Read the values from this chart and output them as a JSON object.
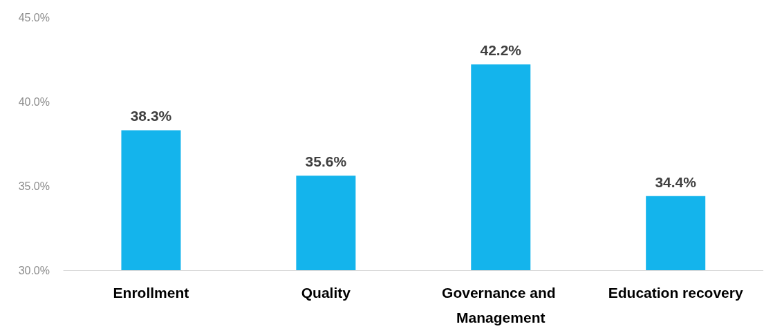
{
  "chart_data": {
    "type": "bar",
    "categories": [
      "Enrollment",
      "Quality",
      "Governance and Management",
      "Education recovery"
    ],
    "values": [
      38.3,
      35.6,
      42.2,
      34.4
    ],
    "value_labels": [
      "38.3%",
      "35.6%",
      "42.2%",
      "34.4%"
    ],
    "color": "#14b4ec",
    "ylim": [
      30,
      45
    ],
    "yticks": [
      {
        "value": 30,
        "label": "30.0%"
      },
      {
        "value": 35,
        "label": "35.0%"
      },
      {
        "value": 40,
        "label": "40.0%"
      },
      {
        "value": 45,
        "label": "45.0%"
      }
    ],
    "grid": false
  }
}
